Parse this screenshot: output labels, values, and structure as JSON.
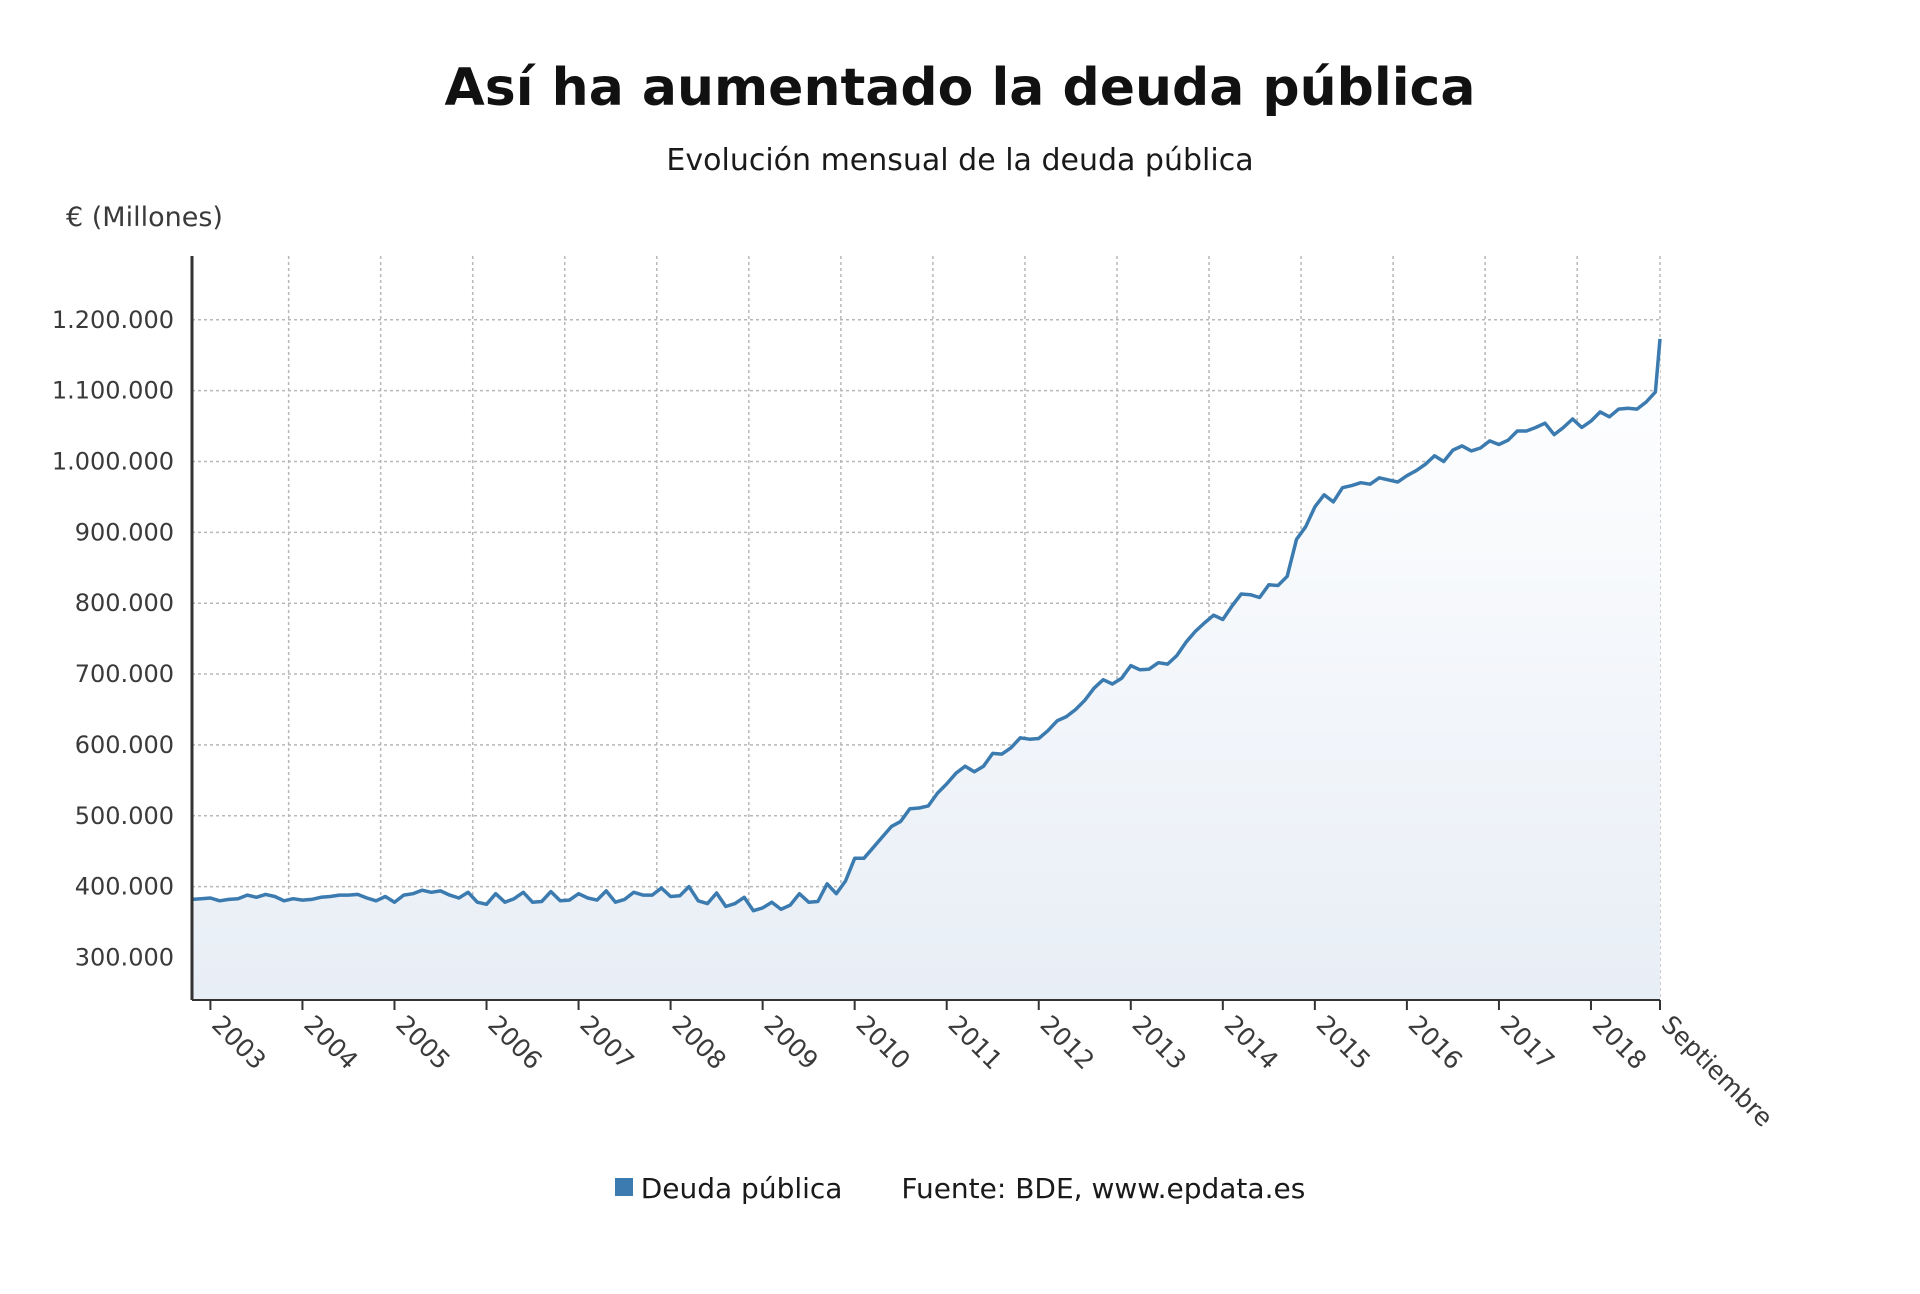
{
  "chart_data": {
    "type": "area",
    "title": "Así ha aumentado la deuda pública",
    "subtitle": "Evolución mensual de la deuda pública",
    "ylabel": "€ (Millones)",
    "ylim": [
      240000,
      1290000
    ],
    "yticks": [
      300000,
      400000,
      500000,
      600000,
      700000,
      800000,
      900000,
      1000000,
      1100000,
      1200000
    ],
    "ytick_labels": [
      "300.000",
      "400.000",
      "500.000",
      "600.000",
      "700.000",
      "800.000",
      "900.000",
      "1.000.000",
      "1.100.000",
      "1.200.000"
    ],
    "xrange": [
      2002.8,
      2018.75
    ],
    "x_tick_labels": [
      {
        "x": 2003.0,
        "label": "2003"
      },
      {
        "x": 2004.0,
        "label": "2004"
      },
      {
        "x": 2005.0,
        "label": "2005"
      },
      {
        "x": 2006.0,
        "label": "2006"
      },
      {
        "x": 2007.0,
        "label": "2007"
      },
      {
        "x": 2008.0,
        "label": "2008"
      },
      {
        "x": 2009.0,
        "label": "2009"
      },
      {
        "x": 2010.0,
        "label": "2010"
      },
      {
        "x": 2011.0,
        "label": "2011"
      },
      {
        "x": 2012.0,
        "label": "2012"
      },
      {
        "x": 2013.0,
        "label": "2013"
      },
      {
        "x": 2014.0,
        "label": "2014"
      },
      {
        "x": 2015.0,
        "label": "2015"
      },
      {
        "x": 2016.0,
        "label": "2016"
      },
      {
        "x": 2017.0,
        "label": "2017"
      },
      {
        "x": 2018.0,
        "label": "2018"
      },
      {
        "x": 2018.75,
        "label": "Septiembre"
      }
    ],
    "grid": true,
    "legend_placement": "bottom-center",
    "series": [
      {
        "name": "Deuda pública",
        "color": "#3b7bb0",
        "fill": "#e8eef6",
        "points": [
          [
            2002.8,
            382000
          ],
          [
            2002.9,
            383000
          ],
          [
            2003.0,
            384000
          ],
          [
            2003.1,
            380000
          ],
          [
            2003.2,
            382000
          ],
          [
            2003.3,
            383000
          ],
          [
            2003.4,
            388000
          ],
          [
            2003.5,
            385000
          ],
          [
            2003.6,
            389000
          ],
          [
            2003.7,
            386000
          ],
          [
            2003.8,
            380000
          ],
          [
            2003.9,
            383000
          ],
          [
            2004.0,
            381000
          ],
          [
            2004.1,
            382000
          ],
          [
            2004.2,
            385000
          ],
          [
            2004.3,
            386000
          ],
          [
            2004.4,
            388000
          ],
          [
            2004.5,
            388000
          ],
          [
            2004.6,
            389000
          ],
          [
            2004.7,
            384000
          ],
          [
            2004.8,
            380000
          ],
          [
            2004.9,
            386000
          ],
          [
            2005.0,
            378000
          ],
          [
            2005.1,
            388000
          ],
          [
            2005.2,
            390000
          ],
          [
            2005.3,
            395000
          ],
          [
            2005.4,
            392000
          ],
          [
            2005.5,
            394000
          ],
          [
            2005.6,
            388000
          ],
          [
            2005.7,
            384000
          ],
          [
            2005.8,
            392000
          ],
          [
            2005.9,
            378000
          ],
          [
            2006.0,
            375000
          ],
          [
            2006.1,
            390000
          ],
          [
            2006.2,
            378000
          ],
          [
            2006.3,
            383000
          ],
          [
            2006.4,
            392000
          ],
          [
            2006.5,
            378000
          ],
          [
            2006.6,
            379000
          ],
          [
            2006.7,
            393000
          ],
          [
            2006.8,
            380000
          ],
          [
            2006.9,
            381000
          ],
          [
            2007.0,
            390000
          ],
          [
            2007.1,
            384000
          ],
          [
            2007.2,
            381000
          ],
          [
            2007.3,
            394000
          ],
          [
            2007.4,
            378000
          ],
          [
            2007.5,
            382000
          ],
          [
            2007.6,
            392000
          ],
          [
            2007.7,
            388000
          ],
          [
            2007.8,
            388000
          ],
          [
            2007.9,
            398000
          ],
          [
            2008.0,
            386000
          ],
          [
            2008.1,
            387000
          ],
          [
            2008.2,
            400000
          ],
          [
            2008.3,
            380000
          ],
          [
            2008.4,
            376000
          ],
          [
            2008.5,
            391000
          ],
          [
            2008.6,
            372000
          ],
          [
            2008.7,
            376000
          ],
          [
            2008.8,
            385000
          ],
          [
            2008.9,
            366000
          ],
          [
            2009.0,
            370000
          ],
          [
            2009.1,
            378000
          ],
          [
            2009.2,
            368000
          ],
          [
            2009.3,
            374000
          ],
          [
            2009.4,
            390000
          ],
          [
            2009.5,
            378000
          ],
          [
            2009.6,
            379000
          ],
          [
            2009.7,
            404000
          ],
          [
            2009.8,
            390000
          ],
          [
            2009.9,
            408000
          ],
          [
            2010.0,
            440000
          ],
          [
            2010.1,
            440000
          ],
          [
            2010.2,
            455000
          ],
          [
            2010.3,
            470000
          ],
          [
            2010.4,
            485000
          ],
          [
            2010.5,
            492000
          ],
          [
            2010.6,
            510000
          ],
          [
            2010.7,
            511000
          ],
          [
            2010.8,
            514000
          ],
          [
            2010.9,
            532000
          ],
          [
            2011.0,
            545000
          ],
          [
            2011.1,
            560000
          ],
          [
            2011.2,
            570000
          ],
          [
            2011.3,
            562000
          ],
          [
            2011.4,
            570000
          ],
          [
            2011.5,
            588000
          ],
          [
            2011.6,
            587000
          ],
          [
            2011.7,
            596000
          ],
          [
            2011.8,
            610000
          ],
          [
            2011.9,
            608000
          ],
          [
            2012.0,
            609000
          ],
          [
            2012.1,
            620000
          ],
          [
            2012.2,
            634000
          ],
          [
            2012.3,
            640000
          ],
          [
            2012.4,
            650000
          ],
          [
            2012.5,
            663000
          ],
          [
            2012.6,
            680000
          ],
          [
            2012.7,
            692000
          ],
          [
            2012.8,
            686000
          ],
          [
            2012.9,
            694000
          ],
          [
            2013.0,
            712000
          ],
          [
            2013.1,
            706000
          ],
          [
            2013.2,
            707000
          ],
          [
            2013.3,
            716000
          ],
          [
            2013.4,
            714000
          ],
          [
            2013.5,
            726000
          ],
          [
            2013.6,
            745000
          ],
          [
            2013.7,
            760000
          ],
          [
            2013.8,
            772000
          ],
          [
            2013.9,
            783000
          ],
          [
            2014.0,
            777000
          ],
          [
            2014.1,
            796000
          ],
          [
            2014.2,
            813000
          ],
          [
            2014.3,
            812000
          ],
          [
            2014.4,
            808000
          ],
          [
            2014.5,
            826000
          ],
          [
            2014.6,
            825000
          ],
          [
            2014.7,
            838000
          ],
          [
            2014.8,
            890000
          ],
          [
            2014.9,
            908000
          ],
          [
            2015.0,
            936000
          ],
          [
            2015.1,
            953000
          ],
          [
            2015.2,
            943000
          ],
          [
            2015.3,
            963000
          ],
          [
            2015.4,
            966000
          ],
          [
            2015.5,
            970000
          ],
          [
            2015.6,
            968000
          ],
          [
            2015.7,
            977000
          ],
          [
            2015.8,
            974000
          ],
          [
            2015.9,
            971000
          ],
          [
            2016.0,
            980000
          ],
          [
            2016.1,
            987000
          ],
          [
            2016.2,
            996000
          ],
          [
            2016.3,
            1008000
          ],
          [
            2016.4,
            1000000
          ],
          [
            2016.5,
            1016000
          ],
          [
            2016.6,
            1022000
          ],
          [
            2016.7,
            1015000
          ],
          [
            2016.8,
            1019000
          ],
          [
            2016.9,
            1029000
          ],
          [
            2017.0,
            1024000
          ],
          [
            2017.1,
            1030000
          ],
          [
            2017.2,
            1043000
          ],
          [
            2017.3,
            1043000
          ],
          [
            2017.4,
            1048000
          ],
          [
            2017.5,
            1054000
          ],
          [
            2017.6,
            1038000
          ],
          [
            2017.7,
            1048000
          ],
          [
            2017.8,
            1060000
          ],
          [
            2017.9,
            1048000
          ],
          [
            2018.0,
            1057000
          ],
          [
            2018.1,
            1070000
          ],
          [
            2018.2,
            1063000
          ],
          [
            2018.3,
            1074000
          ],
          [
            2018.4,
            1075000
          ],
          [
            2018.5,
            1074000
          ],
          [
            2018.6,
            1084000
          ],
          [
            2018.7,
            1098000
          ],
          [
            2018.75,
            1173000
          ]
        ]
      }
    ]
  },
  "legend": {
    "series_label": "Deuda pública",
    "source": "Fuente: BDE, www.epdata.es"
  }
}
